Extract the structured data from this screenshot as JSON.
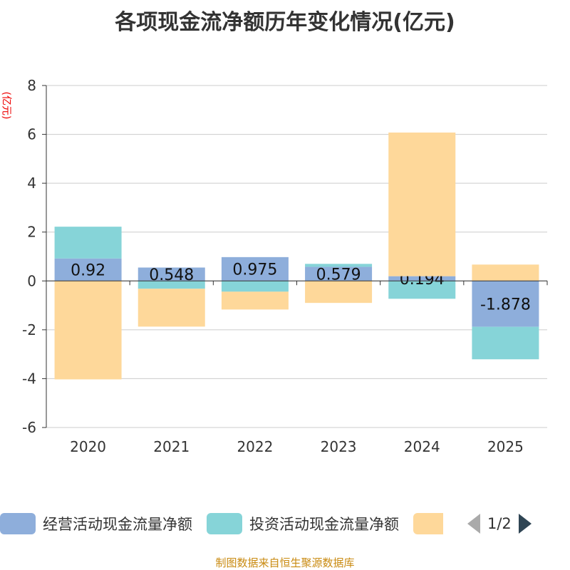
{
  "title": "各项现金流净额历年变化情况(亿元)",
  "source": "制图数据来自恒生聚源数据库",
  "legend_page": "1/2",
  "chart_data": {
    "type": "bar",
    "stacked": true,
    "title": "各项现金流净额历年变化情况(亿元)",
    "ylabel": "(亿元)",
    "ylim": [
      -6,
      8
    ],
    "yticks": [
      -6,
      -4,
      -2,
      0,
      2,
      4,
      6,
      8
    ],
    "grid": true,
    "legend_position": "bottom",
    "categories": [
      "2020",
      "2021",
      "2022",
      "2023",
      "2024",
      "2025"
    ],
    "series": [
      {
        "name": "经营活动现金流量净额",
        "color": "#8eaedb",
        "values": [
          0.92,
          0.548,
          0.975,
          0.579,
          0.194,
          -1.878
        ],
        "labels": [
          "0.92",
          "0.548",
          "0.975",
          "0.579",
          "0.194",
          "-1.878"
        ]
      },
      {
        "name": "投资活动现金流量净额",
        "color": "#86d4d8",
        "values": [
          1.3,
          -0.32,
          -0.44,
          0.12,
          -0.73,
          -1.33
        ]
      },
      {
        "name": "",
        "color": "#fed89a",
        "values": [
          -4.03,
          -1.55,
          -0.73,
          -0.9,
          5.88,
          0.67
        ]
      }
    ]
  }
}
